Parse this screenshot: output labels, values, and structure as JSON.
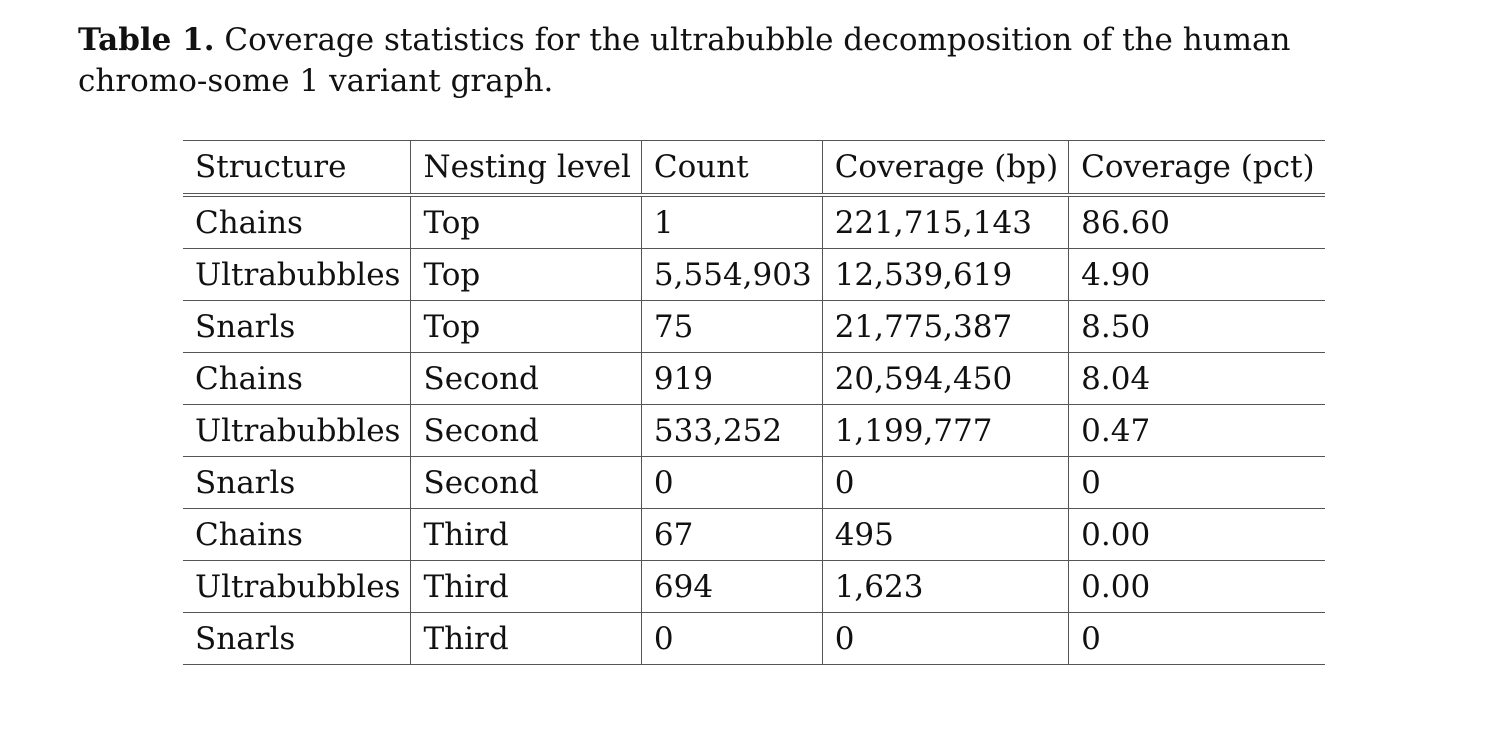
{
  "caption": {
    "label": "Table 1.",
    "text": "Coverage statistics for the ultrabubble decomposition of the human chromo-some 1 variant graph."
  },
  "table": {
    "headers": [
      "Structure",
      "Nesting level",
      "Count",
      "Coverage (bp)",
      "Coverage (pct)"
    ],
    "rows": [
      [
        "Chains",
        "Top",
        "1",
        "221,715,143",
        "86.60"
      ],
      [
        "Ultrabubbles",
        "Top",
        "5,554,903",
        "12,539,619",
        "4.90"
      ],
      [
        "Snarls",
        "Top",
        "75",
        "21,775,387",
        "8.50"
      ],
      [
        "Chains",
        "Second",
        "919",
        "20,594,450",
        "8.04"
      ],
      [
        "Ultrabubbles",
        "Second",
        "533,252",
        "1,199,777",
        "0.47"
      ],
      [
        "Snarls",
        "Second",
        "0",
        "0",
        "0"
      ],
      [
        "Chains",
        "Third",
        "67",
        "495",
        "0.00"
      ],
      [
        "Ultrabubbles",
        "Third",
        "694",
        "1,623",
        "0.00"
      ],
      [
        "Snarls",
        "Third",
        "0",
        "0",
        "0"
      ]
    ]
  }
}
